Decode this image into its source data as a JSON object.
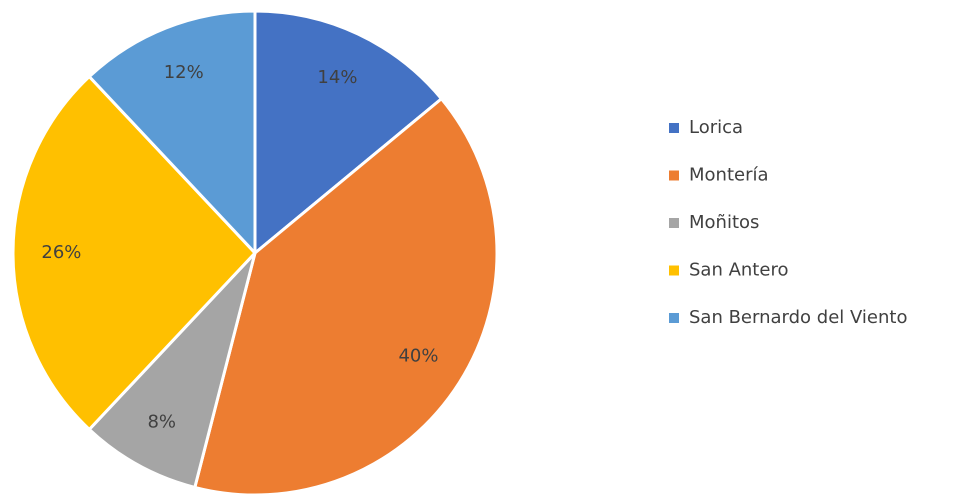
{
  "chart_data": {
    "type": "pie",
    "categories": [
      "Lorica",
      "Montería",
      "Moñitos",
      "San Antero",
      "San Bernardo del Viento"
    ],
    "values": [
      14,
      40,
      8,
      26,
      12
    ],
    "value_labels": [
      "14%",
      "40%",
      "8%",
      "26%",
      "12%"
    ],
    "colors": [
      "#4472c4",
      "#ed7d31",
      "#a5a5a5",
      "#ffc000",
      "#5b9bd5"
    ],
    "legend": "right"
  }
}
